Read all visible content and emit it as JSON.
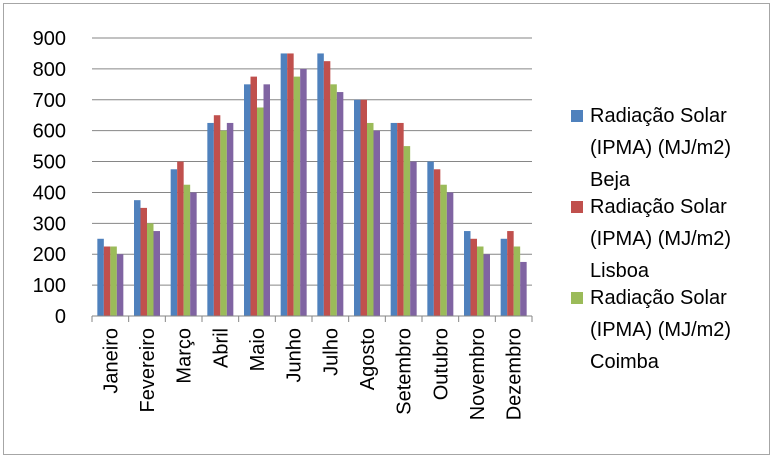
{
  "chart_data": {
    "type": "bar",
    "categories": [
      "Janeiro",
      "Fevereiro",
      "Março",
      "Abril",
      "Maio",
      "Junho",
      "Julho",
      "Agosto",
      "Setembro",
      "Outubro",
      "Novembro",
      "Dezembro"
    ],
    "series": [
      {
        "name": "Radiação Solar (IPMA) (MJ/m2) Beja",
        "legend_lines": [
          "Radiação Solar",
          "(IPMA) (MJ/m2)",
          "Beja"
        ],
        "color": "#4F81BD",
        "values": [
          250,
          375,
          475,
          625,
          750,
          850,
          850,
          700,
          625,
          500,
          275,
          250
        ]
      },
      {
        "name": "Radiação Solar (IPMA) (MJ/m2) Lisboa",
        "legend_lines": [
          "Radiação Solar",
          "(IPMA) (MJ/m2)",
          "Lisboa"
        ],
        "color": "#C0504D",
        "values": [
          225,
          350,
          500,
          650,
          775,
          850,
          825,
          700,
          625,
          475,
          250,
          275
        ]
      },
      {
        "name": "Radiação Solar (IPMA) (MJ/m2) Coimba",
        "legend_lines": [
          "Radiação Solar",
          "(IPMA) (MJ/m2)",
          "Coimba"
        ],
        "color": "#9BBB59",
        "values": [
          225,
          300,
          425,
          600,
          675,
          775,
          750,
          625,
          550,
          425,
          225,
          225
        ]
      },
      {
        "name": "",
        "legend_lines": [],
        "color": "#8064A2",
        "values": [
          200,
          275,
          400,
          625,
          750,
          800,
          725,
          600,
          500,
          400,
          200,
          175
        ]
      }
    ],
    "title": "",
    "xlabel": "",
    "ylabel": "",
    "ylim": [
      0,
      900
    ],
    "yticks": [
      0,
      100,
      200,
      300,
      400,
      500,
      600,
      700,
      800,
      900
    ],
    "grid": true,
    "legend_position": "right"
  }
}
